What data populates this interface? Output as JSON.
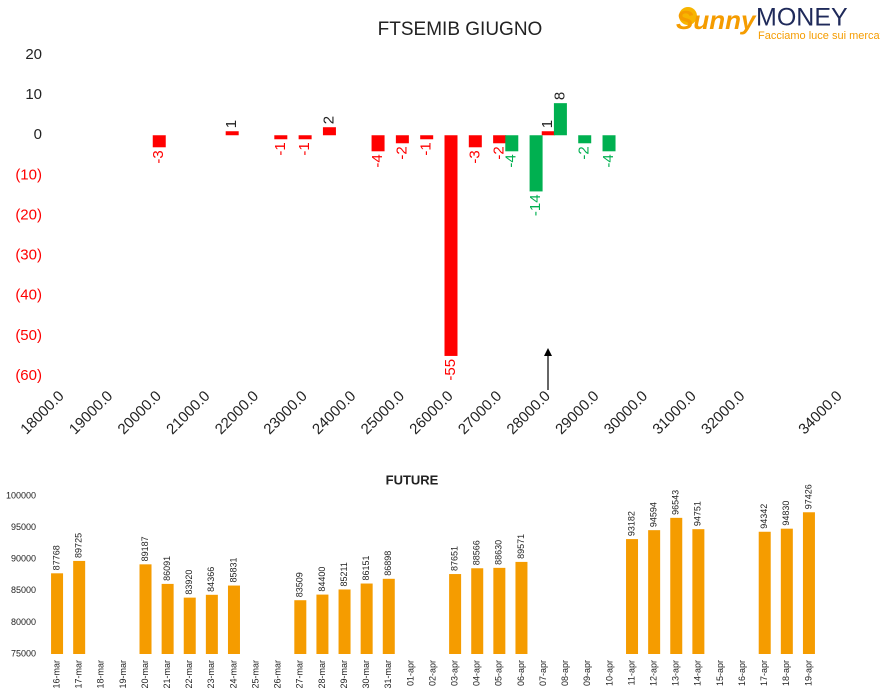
{
  "logo": {
    "brand": "Sunny",
    "name": "MONEY",
    "tagline": "Facciamo luce sui mercati"
  },
  "chart_data": [
    {
      "type": "bar",
      "title": "FTSEMIB GIUGNO",
      "series": [
        {
          "color": "#ff0000",
          "x": [
            20000,
            21500,
            22500,
            23000,
            23500,
            24500,
            25000,
            25500,
            26000,
            26500,
            27000,
            28000
          ],
          "values": [
            -3,
            1,
            -1,
            -1,
            2,
            -4,
            -2,
            -1,
            -55,
            -3,
            -2,
            1
          ]
        },
        {
          "color": "#00b050",
          "x": [
            27250,
            27750,
            28250,
            28750,
            29250
          ],
          "values": [
            -4,
            -14,
            8,
            -2,
            -4
          ]
        }
      ],
      "xlim": [
        18000,
        34000
      ],
      "xticks": [
        {
          "value": 18000,
          "label": "18000.0"
        },
        {
          "value": 19000,
          "label": "19000.0"
        },
        {
          "value": 20000,
          "label": "20000.0"
        },
        {
          "value": 21000,
          "label": "21000.0"
        },
        {
          "value": 22000,
          "label": "22000.0"
        },
        {
          "value": 23000,
          "label": "23000.0"
        },
        {
          "value": 24000,
          "label": "24000.0"
        },
        {
          "value": 25000,
          "label": "25000.0"
        },
        {
          "value": 26000,
          "label": "26000.0"
        },
        {
          "value": 27000,
          "label": "27000.0"
        },
        {
          "value": 28000,
          "label": "28000.0"
        },
        {
          "value": 29000,
          "label": "29000.0"
        },
        {
          "value": 30000,
          "label": "30000.0"
        },
        {
          "value": 31000,
          "label": "31000.0"
        },
        {
          "value": 32000,
          "label": "32000.0"
        },
        {
          "value": 34000,
          "label": "34000.0"
        }
      ],
      "ylim": [
        -60,
        20
      ],
      "yticks": [
        20,
        10,
        0,
        {
          "value": -10,
          "label": "(10)"
        },
        {
          "value": -20,
          "label": "(20)"
        },
        {
          "value": -30,
          "label": "(30)"
        },
        {
          "value": -40,
          "label": "(40)"
        },
        {
          "value": -50,
          "label": "(50)"
        },
        {
          "value": -60,
          "label": "(60)"
        }
      ],
      "negative_color": "#ff0000"
    },
    {
      "type": "bar",
      "title": "FUTURE",
      "color": "#f59c00",
      "categories": [
        "16-mar",
        "17-mar",
        "18-mar",
        "19-mar",
        "20-mar",
        "21-mar",
        "22-mar",
        "23-mar",
        "24-mar",
        "25-mar",
        "26-mar",
        "27-mar",
        "28-mar",
        "29-mar",
        "30-mar",
        "31-mar",
        "01-apr",
        "02-apr",
        "03-apr",
        "04-apr",
        "05-apr",
        "06-apr",
        "07-apr",
        "08-apr",
        "09-apr",
        "10-apr",
        "11-apr",
        "12-apr",
        "13-apr",
        "14-apr",
        "15-apr",
        "16-apr",
        "17-apr",
        "18-apr",
        "19-apr"
      ],
      "values": [
        87768,
        89725,
        null,
        null,
        89187,
        86091,
        83920,
        84366,
        85831,
        null,
        null,
        83509,
        84400,
        85211,
        86151,
        86898,
        null,
        null,
        87651,
        88566,
        88630,
        89571,
        null,
        null,
        null,
        null,
        93182,
        94594,
        96543,
        94751,
        null,
        null,
        94342,
        94830,
        97426
      ],
      "ylim": [
        75000,
        100000
      ],
      "yticks": [
        75000,
        80000,
        85000,
        90000,
        95000,
        100000
      ]
    }
  ]
}
